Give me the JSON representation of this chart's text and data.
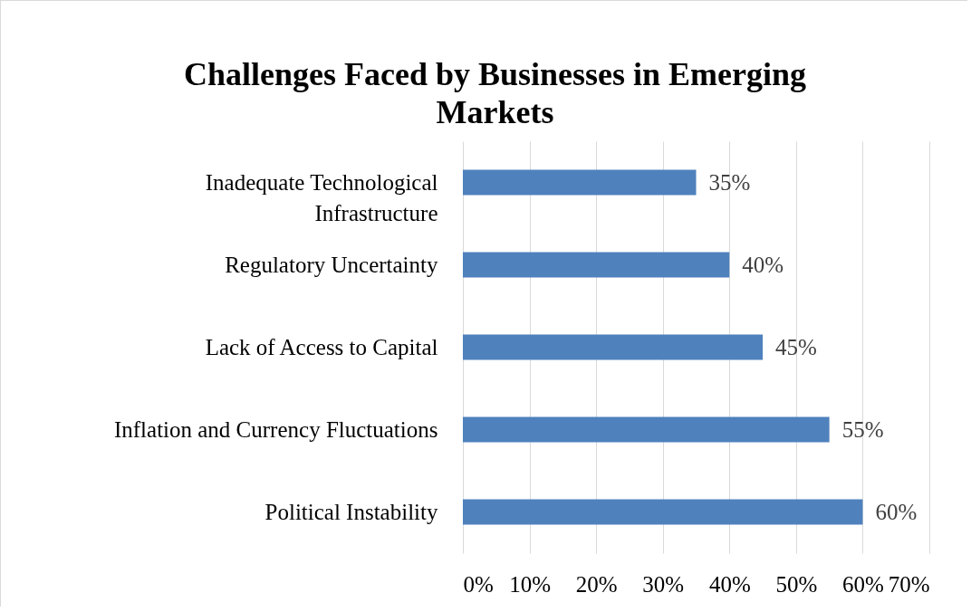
{
  "chart_data": {
    "type": "bar",
    "orientation": "horizontal",
    "title": "Challenges Faced by Businesses in Emerging Markets",
    "categories": [
      "Inadequate Technological Infrastructure",
      "Regulatory Uncertainty",
      "Lack of Access to Capital",
      "Inflation and Currency Fluctuations",
      "Political Instability"
    ],
    "values": [
      35,
      40,
      45,
      55,
      60
    ],
    "value_labels": [
      "35%",
      "40%",
      "45%",
      "55%",
      "60%"
    ],
    "color": "#4f81bd",
    "xlim": [
      0,
      70
    ],
    "xticks": [
      {
        "value": 0,
        "label": "0%"
      },
      {
        "value": 10,
        "label": "10%"
      },
      {
        "value": 20,
        "label": "20%"
      },
      {
        "value": 30,
        "label": "30%"
      },
      {
        "value": 40,
        "label": "40%"
      },
      {
        "value": 50,
        "label": "50%"
      },
      {
        "value": 60,
        "label": "60%"
      },
      {
        "value": 70,
        "label": "70%"
      }
    ],
    "grid": "x"
  }
}
